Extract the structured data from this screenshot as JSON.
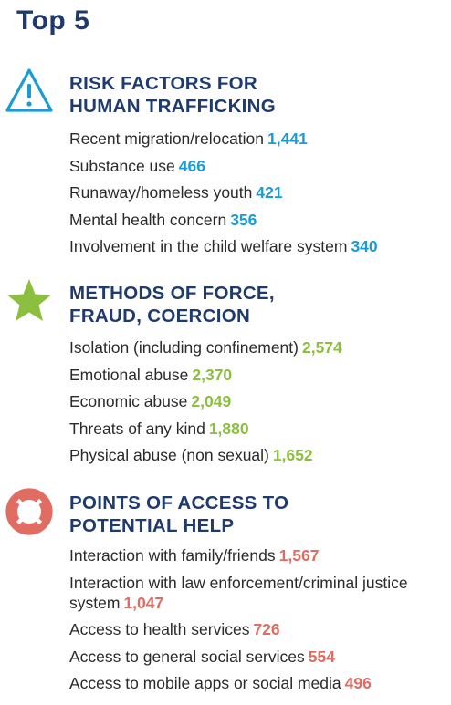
{
  "page": {
    "title": "Top 5"
  },
  "sections": [
    {
      "icon": "warning-triangle-icon",
      "heading_lines": [
        "RISK FACTORS FOR",
        "HUMAN TRAFFICKING"
      ],
      "value_color": "#1a9bd7",
      "items": [
        {
          "label": "Recent migration/relocation",
          "value": "1,441"
        },
        {
          "label": "Substance use",
          "value": "466"
        },
        {
          "label": "Runaway/homeless youth",
          "value": "421"
        },
        {
          "label": "Mental health concern",
          "value": "356"
        },
        {
          "label": "Involvement in the child welfare system",
          "value": "340"
        }
      ]
    },
    {
      "icon": "star-icon",
      "heading_lines": [
        "METHODS OF FORCE,",
        "FRAUD, COERCION"
      ],
      "value_color": "#8cbf3f",
      "items": [
        {
          "label": "Isolation (including confinement)",
          "value": "2,574"
        },
        {
          "label": "Emotional abuse",
          "value": "2,370"
        },
        {
          "label": "Economic abuse",
          "value": "2,049"
        },
        {
          "label": "Threats of any kind",
          "value": "1,880"
        },
        {
          "label": "Physical abuse (non sexual)",
          "value": "1,652"
        }
      ]
    },
    {
      "icon": "life-preserver-icon",
      "heading_lines": [
        "POINTS OF ACCESS TO",
        "POTENTIAL HELP"
      ],
      "value_color": "#e06c62",
      "items": [
        {
          "label": "Interaction with family/friends",
          "value": "1,567"
        },
        {
          "label": "Interaction with law enforcement/criminal justice system",
          "value": "1,047"
        },
        {
          "label": "Access to health services",
          "value": "726"
        },
        {
          "label": "Access to general social services",
          "value": "554"
        },
        {
          "label": "Access to mobile apps or social media",
          "value": "496"
        }
      ]
    }
  ],
  "colors": {
    "heading": "#1f3a6e",
    "text": "#2a2a2a",
    "icon_blue": "#1a9bd7",
    "icon_green": "#8cbf3f",
    "icon_red": "#e06c62"
  }
}
